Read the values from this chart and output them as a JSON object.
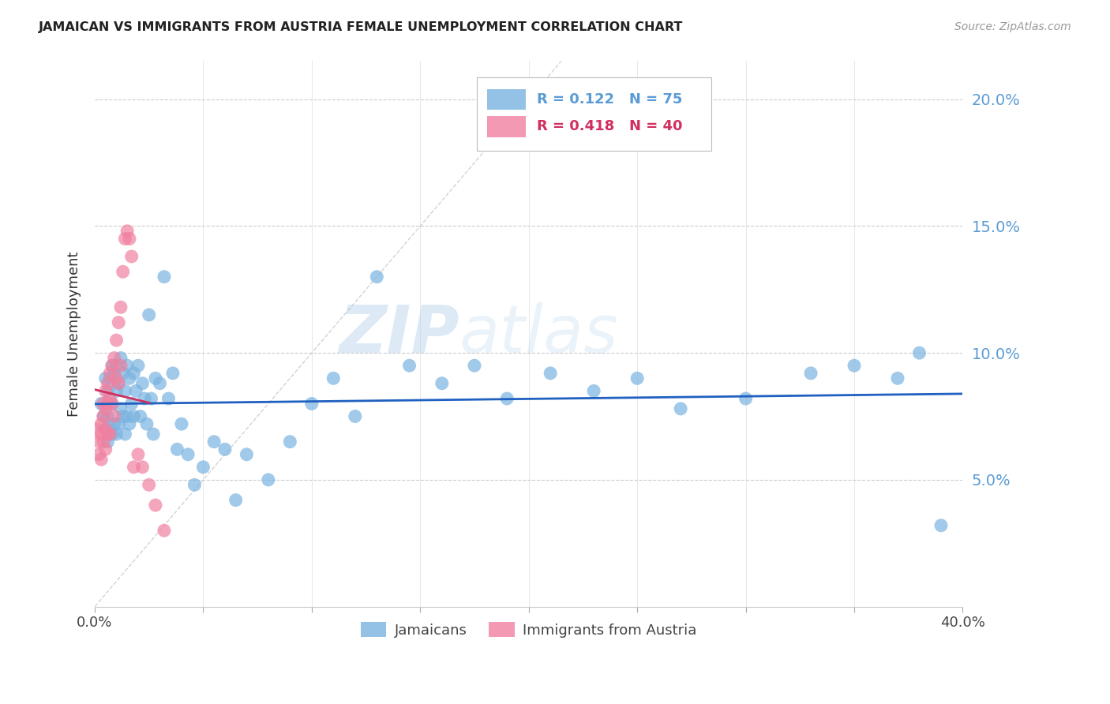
{
  "title": "JAMAICAN VS IMMIGRANTS FROM AUSTRIA FEMALE UNEMPLOYMENT CORRELATION CHART",
  "source": "Source: ZipAtlas.com",
  "ylabel": "Female Unemployment",
  "ytick_labels": [
    "5.0%",
    "10.0%",
    "15.0%",
    "20.0%"
  ],
  "ytick_values": [
    0.05,
    0.1,
    0.15,
    0.2
  ],
  "xlim": [
    0.0,
    0.4
  ],
  "ylim": [
    0.0,
    0.215
  ],
  "watermark_zip": "ZIP",
  "watermark_atlas": "atlas",
  "legend_text1": "R = 0.122   N = 75",
  "legend_text2": "R = 0.418   N = 40",
  "legend_label1": "Jamaicans",
  "legend_label2": "Immigrants from Austria",
  "color_jamaican": "#7ab3e0",
  "color_austria": "#f080a0",
  "color_trend_jamaican": "#2060c0",
  "color_trend_austria": "#d03060",
  "color_diagonal": "#c8c8c8",
  "color_ytick": "#5b9bd5",
  "jamaican_x": [
    0.003,
    0.004,
    0.005,
    0.005,
    0.006,
    0.006,
    0.006,
    0.007,
    0.007,
    0.008,
    0.008,
    0.008,
    0.009,
    0.009,
    0.01,
    0.01,
    0.01,
    0.011,
    0.011,
    0.012,
    0.012,
    0.013,
    0.013,
    0.014,
    0.014,
    0.015,
    0.015,
    0.016,
    0.016,
    0.017,
    0.018,
    0.018,
    0.019,
    0.02,
    0.021,
    0.022,
    0.023,
    0.024,
    0.025,
    0.026,
    0.027,
    0.028,
    0.03,
    0.032,
    0.034,
    0.036,
    0.038,
    0.04,
    0.043,
    0.046,
    0.05,
    0.055,
    0.06,
    0.065,
    0.07,
    0.08,
    0.09,
    0.1,
    0.11,
    0.12,
    0.13,
    0.145,
    0.16,
    0.175,
    0.19,
    0.21,
    0.23,
    0.25,
    0.27,
    0.3,
    0.33,
    0.35,
    0.37,
    0.38,
    0.39
  ],
  "jamaican_y": [
    0.08,
    0.075,
    0.09,
    0.07,
    0.085,
    0.075,
    0.065,
    0.09,
    0.07,
    0.095,
    0.08,
    0.068,
    0.092,
    0.072,
    0.095,
    0.085,
    0.068,
    0.088,
    0.072,
    0.098,
    0.078,
    0.092,
    0.075,
    0.085,
    0.068,
    0.095,
    0.075,
    0.09,
    0.072,
    0.08,
    0.092,
    0.075,
    0.085,
    0.095,
    0.075,
    0.088,
    0.082,
    0.072,
    0.115,
    0.082,
    0.068,
    0.09,
    0.088,
    0.13,
    0.082,
    0.092,
    0.062,
    0.072,
    0.06,
    0.048,
    0.055,
    0.065,
    0.062,
    0.042,
    0.06,
    0.05,
    0.065,
    0.08,
    0.09,
    0.075,
    0.13,
    0.095,
    0.088,
    0.095,
    0.082,
    0.092,
    0.085,
    0.09,
    0.078,
    0.082,
    0.092,
    0.095,
    0.09,
    0.1,
    0.032
  ],
  "austria_x": [
    0.001,
    0.002,
    0.002,
    0.003,
    0.003,
    0.003,
    0.004,
    0.004,
    0.004,
    0.005,
    0.005,
    0.005,
    0.005,
    0.006,
    0.006,
    0.006,
    0.007,
    0.007,
    0.007,
    0.008,
    0.008,
    0.009,
    0.009,
    0.01,
    0.01,
    0.011,
    0.011,
    0.012,
    0.012,
    0.013,
    0.014,
    0.015,
    0.016,
    0.017,
    0.018,
    0.02,
    0.022,
    0.025,
    0.028,
    0.032
  ],
  "austria_y": [
    0.07,
    0.065,
    0.06,
    0.072,
    0.068,
    0.058,
    0.08,
    0.075,
    0.065,
    0.085,
    0.078,
    0.07,
    0.062,
    0.088,
    0.08,
    0.068,
    0.092,
    0.082,
    0.068,
    0.095,
    0.08,
    0.098,
    0.075,
    0.105,
    0.09,
    0.112,
    0.088,
    0.118,
    0.095,
    0.132,
    0.145,
    0.148,
    0.145,
    0.138,
    0.055,
    0.06,
    0.055,
    0.048,
    0.04,
    0.03
  ],
  "xtick_positions": [
    0.0,
    0.05,
    0.1,
    0.15,
    0.2,
    0.25,
    0.3,
    0.35,
    0.4
  ],
  "xtick_show_labels": [
    true,
    false,
    false,
    false,
    false,
    false,
    false,
    false,
    true
  ]
}
